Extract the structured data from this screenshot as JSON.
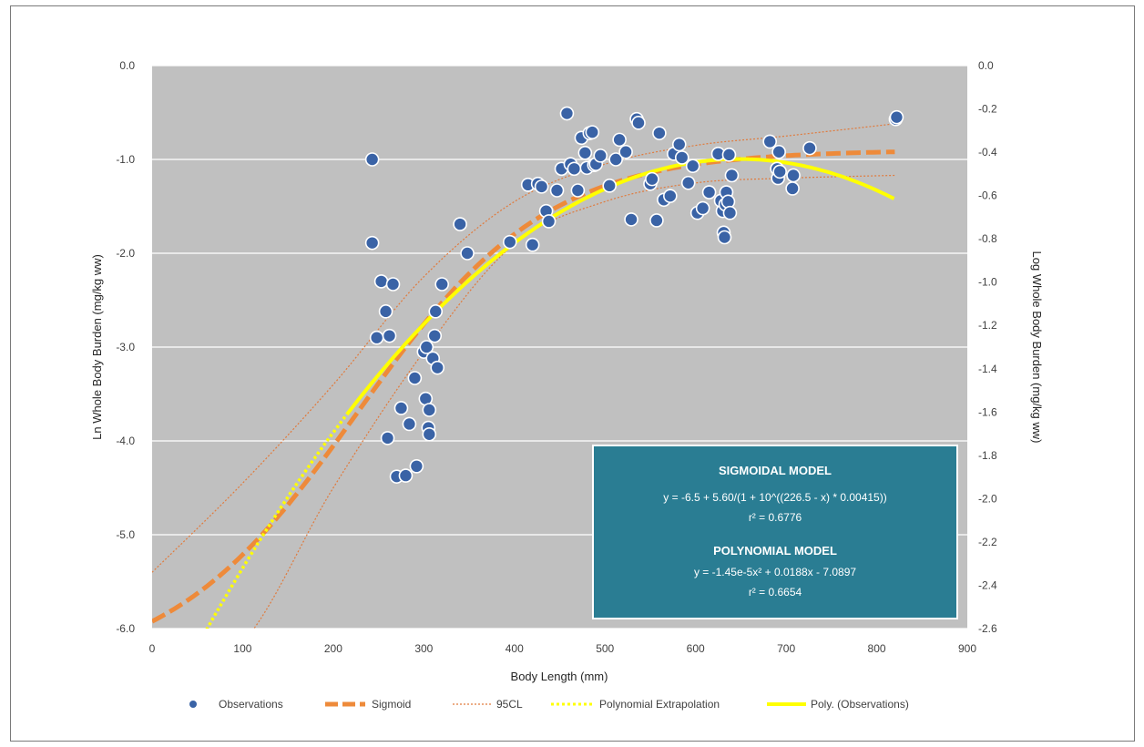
{
  "colors": {
    "plot_bg": "#c0c0c0",
    "gridline": "#ffffff",
    "observation": "#3a63a6",
    "observation_edge": "#ffffff",
    "sigmoid": "#ee8a3a",
    "ci": "#e07a3c",
    "polynomial": "#ffff00",
    "box_bg": "#2a7d93",
    "box_border": "#ffffff"
  },
  "chart_data": {
    "type": "scatter",
    "xlabel": "Body Length (mm)",
    "ylabel_left": "Ln Whole Body Burden (mg/kg ww)",
    "ylabel_right": "Log Whole Body Burden (mg/kg ww)",
    "xlim": [
      0,
      900
    ],
    "ylim_left": [
      -6.0,
      0.0
    ],
    "ylim_right": [
      -2.6,
      0.0
    ],
    "x_ticks": [
      "0",
      "100",
      "200",
      "300",
      "400",
      "500",
      "600",
      "700",
      "800",
      "900"
    ],
    "y_ticks_left": [
      "0.0",
      "-1.0",
      "-2.0",
      "-3.0",
      "-4.0",
      "-5.0",
      "-6.0"
    ],
    "y_ticks_right": [
      "0.0",
      "-0.2",
      "-0.4",
      "-0.6",
      "-0.8",
      "-1.0",
      "-1.2",
      "-1.4",
      "-1.6",
      "-1.8",
      "-2.0",
      "-2.2",
      "-2.4",
      "-2.6"
    ],
    "grid": "horizontal",
    "legend_position": "bottom",
    "legend": [
      "Observations",
      "Sigmoid",
      "95CL",
      "Polynomial Extrapolation",
      "Poly. (Observations)"
    ],
    "observations": {
      "x": [
        243,
        243,
        248,
        253,
        258,
        260,
        262,
        266,
        270,
        275,
        280,
        284,
        290,
        292,
        300,
        302,
        303,
        305,
        306,
        306,
        310,
        312,
        313,
        315,
        320,
        340,
        348,
        395,
        415,
        420,
        426,
        430,
        435,
        438,
        447,
        452,
        458,
        462,
        466,
        470,
        474,
        478,
        480,
        483,
        486,
        488,
        490,
        495,
        505,
        512,
        516,
        523,
        529,
        535,
        537,
        550,
        552,
        557,
        560,
        565,
        572,
        576,
        582,
        585,
        592,
        597,
        602,
        608,
        615,
        625,
        628,
        630,
        631,
        632,
        633,
        634,
        636,
        637,
        638,
        640,
        682,
        690,
        691,
        692,
        693,
        707,
        708,
        726,
        821,
        822
      ],
      "y": [
        -1.0,
        -1.89,
        -2.9,
        -2.3,
        -2.62,
        -3.97,
        -2.88,
        -2.33,
        -4.38,
        -3.65,
        -4.37,
        -3.82,
        -3.33,
        -4.27,
        -3.05,
        -3.55,
        -3.0,
        -3.86,
        -3.67,
        -3.93,
        -3.12,
        -2.88,
        -2.62,
        -3.22,
        -2.33,
        -1.69,
        -2.0,
        -1.88,
        -1.27,
        -1.91,
        -1.26,
        -1.29,
        -1.55,
        -1.66,
        -1.33,
        -1.1,
        -0.51,
        -1.05,
        -1.1,
        -1.33,
        -0.77,
        -0.93,
        -1.09,
        -0.72,
        -0.71,
        -1.06,
        -1.05,
        -0.96,
        -1.28,
        -1.0,
        -0.79,
        -0.92,
        -1.64,
        -0.57,
        -0.61,
        -1.26,
        -1.21,
        -1.65,
        -0.72,
        -1.43,
        -1.39,
        -0.94,
        -0.84,
        -0.98,
        -1.25,
        -1.07,
        -1.57,
        -1.52,
        -1.35,
        -0.94,
        -1.44,
        -1.55,
        -1.78,
        -1.83,
        -1.48,
        -1.35,
        -1.45,
        -0.95,
        -1.57,
        -1.17,
        -0.81,
        -1.1,
        -1.2,
        -0.92,
        -1.13,
        -1.31,
        -1.17,
        -0.88,
        -0.57,
        -0.55
      ]
    },
    "sigmoid_model": {
      "a": -6.5,
      "b": 5.6,
      "c": 226.5,
      "d": 0.00415,
      "x_range": [
        0,
        820
      ]
    },
    "polynomial_model": {
      "a": -1.45e-05,
      "b": 0.0188,
      "c": -7.0897,
      "fit_range": [
        215,
        820
      ],
      "extrapolation_range": [
        0,
        215
      ]
    },
    "ci_bands": {
      "upper": {
        "x": [
          0,
          100,
          200,
          300,
          400,
          500,
          600,
          700,
          820
        ],
        "y": [
          -5.4,
          -4.45,
          -3.4,
          -2.25,
          -1.45,
          -1.05,
          -0.85,
          -0.75,
          -0.62
        ]
      },
      "lower": {
        "x": [
          0,
          100,
          200,
          300,
          400,
          500,
          600,
          700,
          820
        ],
        "y": [
          -6.6,
          -6.15,
          -4.5,
          -3.05,
          -1.9,
          -1.45,
          -1.25,
          -1.2,
          -1.17
        ]
      }
    }
  },
  "annotation": {
    "sigmoid_title": "SIGMOIDAL MODEL",
    "sigmoid_eq": "y = -6.5 + 5.60/(1 + 10^((226.5 - x) * 0.00415))",
    "sigmoid_r2": "r² = 0.6776",
    "poly_title": "POLYNOMIAL MODEL",
    "poly_eq": "y = -1.45e-5x² + 0.0188x - 7.0897",
    "poly_r2": "r² = 0.6654"
  }
}
